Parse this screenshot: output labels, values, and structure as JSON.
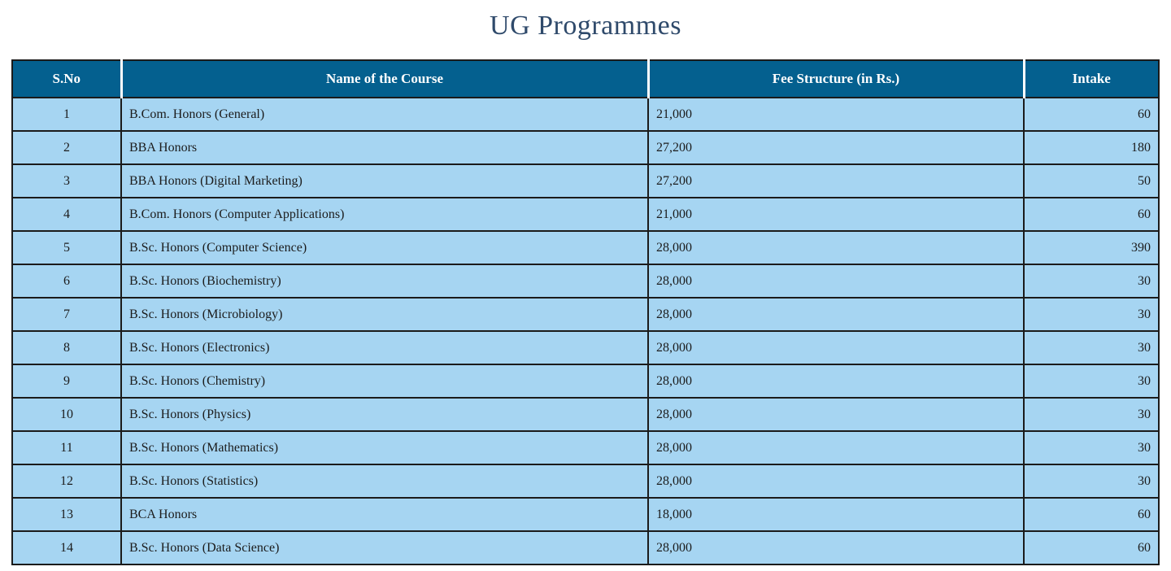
{
  "title": "UG Programmes",
  "colors": {
    "header_bg": "#04608f",
    "header_text": "#ffffff",
    "row_bg": "#a6d5f2",
    "border": "#1b1b1b",
    "title_text": "#2f4a6b"
  },
  "table": {
    "headers": {
      "sno": "S.No",
      "course": "Name of the Course",
      "fee": "Fee Structure (in Rs.)",
      "intake": "Intake"
    },
    "rows": [
      {
        "sno": "1",
        "course": "B.Com. Honors (General)",
        "fee": "21,000",
        "intake": "60"
      },
      {
        "sno": "2",
        "course": "BBA Honors",
        "fee": "27,200",
        "intake": "180"
      },
      {
        "sno": "3",
        "course": "BBA Honors (Digital Marketing)",
        "fee": "27,200",
        "intake": "50"
      },
      {
        "sno": "4",
        "course": "B.Com. Honors (Computer Applications)",
        "fee": "21,000",
        "intake": "60"
      },
      {
        "sno": "5",
        "course": "B.Sc. Honors (Computer Science)",
        "fee": "28,000",
        "intake": "390"
      },
      {
        "sno": "6",
        "course": "B.Sc. Honors (Biochemistry)",
        "fee": "28,000",
        "intake": "30"
      },
      {
        "sno": "7",
        "course": "B.Sc. Honors (Microbiology)",
        "fee": "28,000",
        "intake": "30"
      },
      {
        "sno": "8",
        "course": "B.Sc. Honors (Electronics)",
        "fee": "28,000",
        "intake": "30"
      },
      {
        "sno": "9",
        "course": "B.Sc. Honors (Chemistry)",
        "fee": "28,000",
        "intake": "30"
      },
      {
        "sno": "10",
        "course": "B.Sc. Honors (Physics)",
        "fee": "28,000",
        "intake": "30"
      },
      {
        "sno": "11",
        "course": "B.Sc. Honors (Mathematics)",
        "fee": "28,000",
        "intake": "30"
      },
      {
        "sno": "12",
        "course": "B.Sc. Honors (Statistics)",
        "fee": "28,000",
        "intake": "30"
      },
      {
        "sno": "13",
        "course": "BCA Honors",
        "fee": "18,000",
        "intake": "60"
      },
      {
        "sno": "14",
        "course": "B.Sc. Honors (Data Science)",
        "fee": "28,000",
        "intake": "60"
      }
    ]
  }
}
